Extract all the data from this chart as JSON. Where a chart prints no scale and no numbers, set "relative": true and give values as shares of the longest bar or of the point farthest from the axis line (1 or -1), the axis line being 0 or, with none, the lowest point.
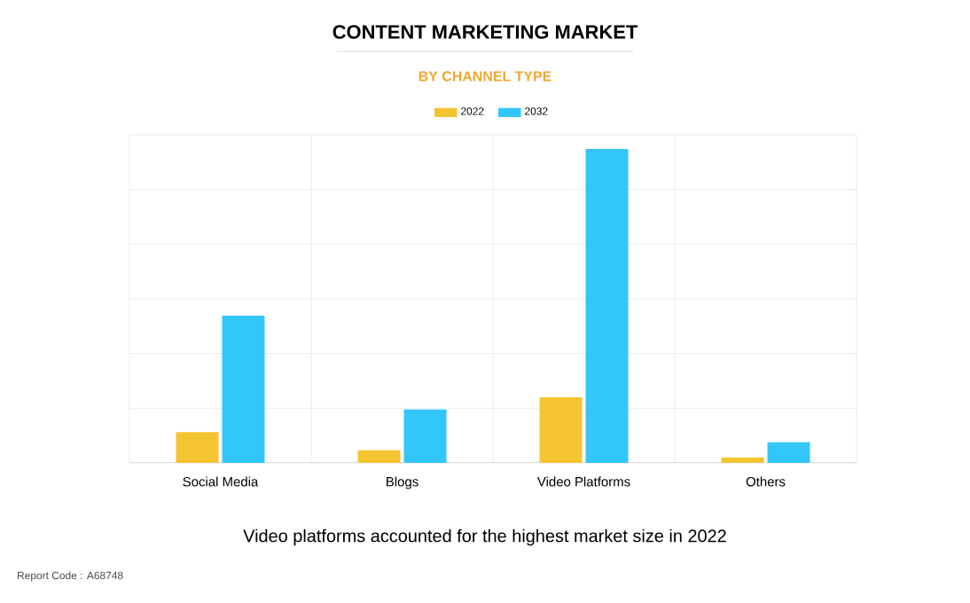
{
  "chart_data": {
    "type": "bar",
    "title": "CONTENT MARKETING MARKET",
    "subtitle": "BY CHANNEL TYPE",
    "categories": [
      "Social Media",
      "Blogs",
      "Video Platforms",
      "Others"
    ],
    "series": [
      {
        "name": "2022",
        "color": "#f4c431",
        "values": [
          0.098,
          0.04,
          0.209,
          0.017
        ]
      },
      {
        "name": "2032",
        "color": "#33c6fb",
        "values": [
          0.469,
          0.17,
          1,
          0.066
        ]
      }
    ],
    "relative": true,
    "grid": true,
    "legend": "top",
    "annotations": [
      "Video platforms accounted for the highest market size in 2022",
      "Report Code : A68748"
    ]
  }
}
